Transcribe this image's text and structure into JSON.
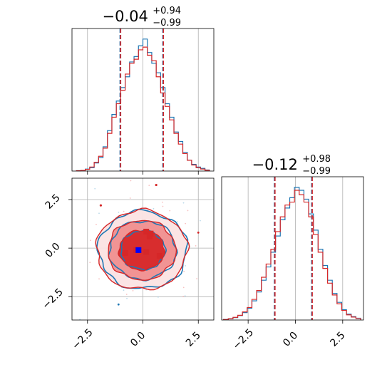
{
  "chart_data": [
    {
      "type": "histogram",
      "panel": "marginal-x",
      "title": {
        "value": "−0.04",
        "sup": "+0.94",
        "sub": "−0.99"
      },
      "xlim": [
        -3.2,
        3.2
      ],
      "grid": true,
      "quantile_lines": [
        -1.03,
        0.9
      ],
      "series": [
        {
          "color": "#1f77b4",
          "bin_edges": [
            -3.0,
            -2.8,
            -2.6,
            -2.4,
            -2.2,
            -2.0,
            -1.8,
            -1.6,
            -1.4,
            -1.2,
            -1.0,
            -0.8,
            -0.6,
            -0.4,
            -0.2,
            0.0,
            0.2,
            0.4,
            0.6,
            0.8,
            1.0,
            1.2,
            1.4,
            1.6,
            1.8,
            2.0,
            2.2,
            2.4,
            2.6,
            2.8,
            3.0
          ],
          "counts": [
            0.3,
            0.4,
            1.5,
            2.5,
            6,
            10,
            18,
            30,
            42,
            52,
            62,
            70,
            81,
            85,
            93,
            98,
            88,
            80,
            73,
            62,
            50,
            40,
            29,
            22,
            14,
            8,
            5,
            3,
            2,
            0.8
          ]
        },
        {
          "color": "#d62728",
          "bin_edges": [
            -3.0,
            -2.8,
            -2.6,
            -2.4,
            -2.2,
            -2.0,
            -1.8,
            -1.6,
            -1.4,
            -1.2,
            -1.0,
            -0.8,
            -0.6,
            -0.4,
            -0.2,
            0.0,
            0.2,
            0.4,
            0.6,
            0.8,
            1.0,
            1.2,
            1.4,
            1.6,
            1.8,
            2.0,
            2.2,
            2.4,
            2.6,
            2.8,
            3.0
          ],
          "counts": [
            0.2,
            0.5,
            1.3,
            3,
            6.5,
            11,
            17,
            28,
            40,
            50,
            60,
            72,
            80,
            83,
            90,
            92,
            86,
            82,
            70,
            58,
            48,
            38,
            28,
            20,
            13,
            8,
            4.5,
            2.5,
            1.5,
            0.6
          ]
        }
      ]
    },
    {
      "type": "histogram",
      "panel": "marginal-y",
      "title": {
        "value": "−0.12",
        "sup": "+0.98",
        "sub": "−0.99"
      },
      "xlim": [
        -3.9,
        3.6
      ],
      "xticks": [
        "−2.5",
        "0.0",
        "2.5"
      ],
      "grid": true,
      "quantile_lines": [
        -1.11,
        0.86
      ],
      "series": [
        {
          "color": "#1f77b4",
          "bin_edges": [
            -3.8,
            -3.55,
            -3.3,
            -3.05,
            -2.8,
            -2.55,
            -2.3,
            -2.05,
            -1.8,
            -1.55,
            -1.3,
            -1.05,
            -0.8,
            -0.55,
            -0.3,
            -0.05,
            0.2,
            0.45,
            0.7,
            0.95,
            1.2,
            1.45,
            1.7,
            1.95,
            2.2,
            2.45,
            2.7,
            2.95,
            3.2,
            3.45
          ],
          "counts": [
            0.4,
            0.8,
            1.6,
            3,
            5,
            8,
            13,
            19,
            27,
            36,
            46,
            57,
            68,
            76,
            83,
            90,
            88,
            82,
            72,
            61,
            48,
            37,
            27,
            18,
            12,
            7,
            4,
            2.3,
            1.2
          ]
        },
        {
          "color": "#d62728",
          "bin_edges": [
            -3.8,
            -3.55,
            -3.3,
            -3.05,
            -2.8,
            -2.55,
            -2.3,
            -2.05,
            -1.8,
            -1.55,
            -1.3,
            -1.05,
            -0.8,
            -0.55,
            -0.3,
            -0.05,
            0.2,
            0.45,
            0.7,
            0.95,
            1.2,
            1.45,
            1.7,
            1.95,
            2.2,
            2.45,
            2.7,
            2.95,
            3.2,
            3.45
          ],
          "counts": [
            0.3,
            0.9,
            1.8,
            3.2,
            5.5,
            8.5,
            14,
            20,
            29,
            38,
            48,
            60,
            70,
            78,
            80,
            88,
            85,
            80,
            70,
            58,
            46,
            35,
            25,
            17,
            11,
            6.5,
            3.5,
            2,
            1
          ]
        }
      ]
    },
    {
      "type": "contour",
      "panel": "joint",
      "xlim": [
        -3.2,
        3.2
      ],
      "ylim": [
        -3.7,
        3.6
      ],
      "xticks": [
        "−2.5",
        "0.0",
        "2.5"
      ],
      "yticks": [
        "−2.5",
        "0.0",
        "2.5"
      ],
      "grid": true,
      "series": [
        {
          "color": "#1f77b4",
          "kind": "contour-lines",
          "levels_sigma": [
            1.0,
            1.5,
            2.0
          ],
          "center": [
            0.0,
            -0.1
          ]
        },
        {
          "color": "#d62728",
          "kind": "filled-contours",
          "levels_sigma": [
            1.0,
            1.5,
            2.0
          ],
          "center": [
            -0.05,
            -0.1
          ],
          "fill_colors": [
            "#d62728",
            "#f08f8f",
            "#fbdcdc"
          ]
        }
      ],
      "markers": [
        {
          "color": "#d62728",
          "points": [
            [
              0.15,
              0.85
            ],
            [
              0.35,
              0.75
            ],
            [
              0.3,
              0.6
            ],
            [
              -0.8,
              -0.25
            ],
            [
              -0.3,
              -0.1
            ],
            [
              0.15,
              -0.2
            ],
            [
              0.75,
              -0.4
            ]
          ]
        },
        {
          "color": "#0000ff",
          "points": [
            [
              -0.2,
              -0.1
            ]
          ]
        }
      ]
    }
  ]
}
